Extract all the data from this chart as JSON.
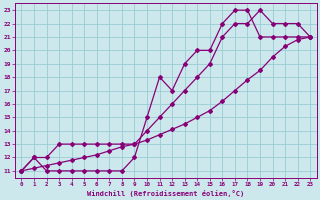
{
  "xlabel": "Windchill (Refroidissement éolien,°C)",
  "bg_color": "#cce8ec",
  "grid_color": "#99ccd4",
  "line_color": "#880077",
  "xlim": [
    -0.5,
    23.5
  ],
  "ylim": [
    10.5,
    23.5
  ],
  "xticks": [
    0,
    1,
    2,
    3,
    4,
    5,
    6,
    7,
    8,
    9,
    10,
    11,
    12,
    13,
    14,
    15,
    16,
    17,
    18,
    19,
    20,
    21,
    22,
    23
  ],
  "yticks": [
    11,
    12,
    13,
    14,
    15,
    16,
    17,
    18,
    19,
    20,
    21,
    22,
    23
  ],
  "curve1_x": [
    0,
    1,
    2,
    3,
    4,
    5,
    6,
    7,
    8,
    9,
    10,
    11,
    12,
    13,
    14,
    15,
    16,
    17,
    18,
    19,
    20,
    21,
    22,
    23
  ],
  "curve1_y": [
    11.0,
    11.2,
    11.4,
    11.6,
    11.8,
    12.0,
    12.2,
    12.5,
    12.8,
    13.0,
    13.3,
    13.7,
    14.1,
    14.5,
    15.0,
    15.5,
    16.2,
    17.0,
    17.8,
    18.5,
    19.5,
    20.3,
    20.8,
    21.0
  ],
  "curve2_x": [
    0,
    1,
    2,
    3,
    4,
    5,
    6,
    7,
    8,
    9,
    10,
    11,
    12,
    13,
    14,
    15,
    16,
    17,
    18,
    19,
    20,
    21,
    22,
    23
  ],
  "curve2_y": [
    11,
    12,
    12,
    13,
    13,
    13,
    13,
    13,
    13,
    13,
    14,
    15,
    16,
    17,
    18,
    19,
    21,
    22,
    22,
    23,
    22,
    22,
    22,
    21
  ],
  "curve3_x": [
    0,
    1,
    2,
    3,
    4,
    5,
    6,
    7,
    8,
    9,
    10,
    11,
    12,
    13,
    14,
    15,
    16,
    17,
    18,
    19,
    20,
    21,
    22,
    23
  ],
  "curve3_y": [
    11,
    12,
    11,
    11,
    11,
    11,
    11,
    11,
    11,
    12,
    15,
    18,
    17,
    19,
    20,
    20,
    22,
    23,
    23,
    21,
    21,
    21,
    21,
    21
  ]
}
